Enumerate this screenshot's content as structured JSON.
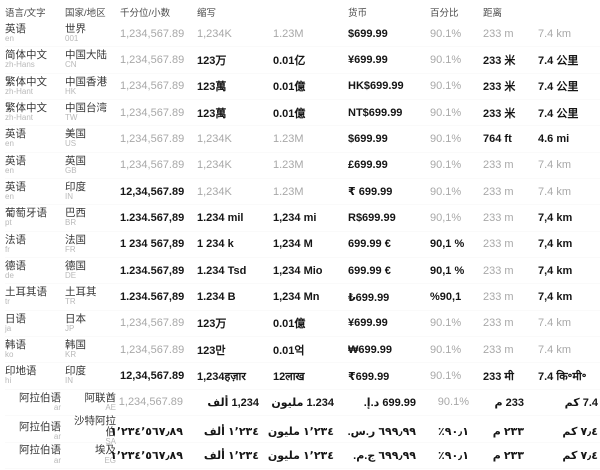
{
  "table": {
    "headers": {
      "language": "语言/文字",
      "country": "国家/地区",
      "decimal_format": "千分位/小数",
      "abbreviation": "缩写",
      "currency": "货币",
      "percentage": "百分比",
      "distance": "距离"
    },
    "rows": [
      {
        "language": "英语",
        "language_code": "en",
        "country": "世界",
        "country_code": "001",
        "rtl": false,
        "values": [
          {
            "text": "1,234,567.89",
            "emphasis": false
          },
          {
            "text": "1,234K",
            "emphasis": false
          },
          {
            "text": "1.23M",
            "emphasis": false
          },
          {
            "text": "$699.99",
            "emphasis": true
          },
          {
            "text": "90.1%",
            "emphasis": false
          },
          {
            "text": "233 m",
            "emphasis": false
          },
          {
            "text": "7.4 km",
            "emphasis": false
          }
        ]
      },
      {
        "language": "简体中文",
        "language_code": "zh-Hans",
        "country": "中国大陆",
        "country_code": "CN",
        "rtl": false,
        "values": [
          {
            "text": "1,234,567.89",
            "emphasis": false
          },
          {
            "text": "123万",
            "emphasis": true
          },
          {
            "text": "0.01亿",
            "emphasis": true
          },
          {
            "text": "¥699.99",
            "emphasis": true
          },
          {
            "text": "90.1%",
            "emphasis": false
          },
          {
            "text": "233 米",
            "emphasis": true
          },
          {
            "text": "7.4 公里",
            "emphasis": true
          }
        ]
      },
      {
        "language": "繁体中文",
        "language_code": "zh-Hant",
        "country": "中国香港",
        "country_code": "HK",
        "rtl": false,
        "values": [
          {
            "text": "1,234,567.89",
            "emphasis": false
          },
          {
            "text": "123萬",
            "emphasis": true
          },
          {
            "text": "0.01億",
            "emphasis": true
          },
          {
            "text": "HK$699.99",
            "emphasis": true
          },
          {
            "text": "90.1%",
            "emphasis": false
          },
          {
            "text": "233 米",
            "emphasis": true
          },
          {
            "text": "7.4 公里",
            "emphasis": true
          }
        ]
      },
      {
        "language": "繁体中文",
        "language_code": "zh-Hant",
        "country": "中国台湾",
        "country_code": "TW",
        "rtl": false,
        "values": [
          {
            "text": "1,234,567.89",
            "emphasis": false
          },
          {
            "text": "123萬",
            "emphasis": true
          },
          {
            "text": "0.01億",
            "emphasis": true
          },
          {
            "text": "NT$699.99",
            "emphasis": true
          },
          {
            "text": "90.1%",
            "emphasis": false
          },
          {
            "text": "233 米",
            "emphasis": true
          },
          {
            "text": "7.4 公里",
            "emphasis": true
          }
        ]
      },
      {
        "language": "英语",
        "language_code": "en",
        "country": "美国",
        "country_code": "US",
        "rtl": false,
        "values": [
          {
            "text": "1,234,567.89",
            "emphasis": false
          },
          {
            "text": "1,234K",
            "emphasis": false
          },
          {
            "text": "1.23M",
            "emphasis": false
          },
          {
            "text": "$699.99",
            "emphasis": true
          },
          {
            "text": "90.1%",
            "emphasis": false
          },
          {
            "text": "764 ft",
            "emphasis": true
          },
          {
            "text": "4.6 mi",
            "emphasis": true
          }
        ]
      },
      {
        "language": "英语",
        "language_code": "en",
        "country": "英国",
        "country_code": "GB",
        "rtl": false,
        "values": [
          {
            "text": "1,234,567.89",
            "emphasis": false
          },
          {
            "text": "1,234K",
            "emphasis": false
          },
          {
            "text": "1.23M",
            "emphasis": false
          },
          {
            "text": "£699.99",
            "emphasis": true
          },
          {
            "text": "90.1%",
            "emphasis": false
          },
          {
            "text": "233 m",
            "emphasis": false
          },
          {
            "text": "7.4 km",
            "emphasis": false
          }
        ]
      },
      {
        "language": "英语",
        "language_code": "en",
        "country": "印度",
        "country_code": "IN",
        "rtl": false,
        "values": [
          {
            "text": "12,34,567.89",
            "emphasis": true
          },
          {
            "text": "1,234K",
            "emphasis": false
          },
          {
            "text": "1.23M",
            "emphasis": false
          },
          {
            "text": "₹ 699.99",
            "emphasis": true
          },
          {
            "text": "90.1%",
            "emphasis": false
          },
          {
            "text": "233 m",
            "emphasis": false
          },
          {
            "text": "7.4 km",
            "emphasis": false
          }
        ]
      },
      {
        "language": "葡萄牙语",
        "language_code": "pt",
        "country": "巴西",
        "country_code": "BR",
        "rtl": false,
        "values": [
          {
            "text": "1.234.567,89",
            "emphasis": true
          },
          {
            "text": "1.234 mil",
            "emphasis": true
          },
          {
            "text": "1,234 mi",
            "emphasis": true
          },
          {
            "text": "R$699.99",
            "emphasis": true
          },
          {
            "text": "90,1%",
            "emphasis": false
          },
          {
            "text": "233 m",
            "emphasis": false
          },
          {
            "text": "7,4 km",
            "emphasis": true
          }
        ]
      },
      {
        "language": "法语",
        "language_code": "fr",
        "country": "法国",
        "country_code": "FR",
        "rtl": false,
        "values": [
          {
            "text": "1 234 567,89",
            "emphasis": true
          },
          {
            "text": "1 234 k",
            "emphasis": true
          },
          {
            "text": "1,234 M",
            "emphasis": true
          },
          {
            "text": "699.99 €",
            "emphasis": true
          },
          {
            "text": "90,1 %",
            "emphasis": true
          },
          {
            "text": "233 m",
            "emphasis": false
          },
          {
            "text": "7,4 km",
            "emphasis": true
          }
        ]
      },
      {
        "language": "德语",
        "language_code": "de",
        "country": "德国",
        "country_code": "DE",
        "rtl": false,
        "values": [
          {
            "text": "1.234.567,89",
            "emphasis": true
          },
          {
            "text": "1.234 Tsd",
            "emphasis": true
          },
          {
            "text": "1,234 Mio",
            "emphasis": true
          },
          {
            "text": "699.99 €",
            "emphasis": true
          },
          {
            "text": "90,1 %",
            "emphasis": true
          },
          {
            "text": "233 m",
            "emphasis": false
          },
          {
            "text": "7,4 km",
            "emphasis": true
          }
        ]
      },
      {
        "language": "土耳其语",
        "language_code": "tr",
        "country": "土耳其",
        "country_code": "TR",
        "rtl": false,
        "values": [
          {
            "text": "1.234.567,89",
            "emphasis": true
          },
          {
            "text": "1.234 B",
            "emphasis": true
          },
          {
            "text": "1,234 Mn",
            "emphasis": true
          },
          {
            "text": "₺699.99",
            "emphasis": true
          },
          {
            "text": "%90,1",
            "emphasis": true
          },
          {
            "text": "233 m",
            "emphasis": false
          },
          {
            "text": "7,4 km",
            "emphasis": true
          }
        ]
      },
      {
        "language": "日语",
        "language_code": "ja",
        "country": "日本",
        "country_code": "JP",
        "rtl": false,
        "values": [
          {
            "text": "1,234,567.89",
            "emphasis": false
          },
          {
            "text": "123万",
            "emphasis": true
          },
          {
            "text": "0.01億",
            "emphasis": true
          },
          {
            "text": "¥699.99",
            "emphasis": true
          },
          {
            "text": "90.1%",
            "emphasis": false
          },
          {
            "text": "233 m",
            "emphasis": false
          },
          {
            "text": "7.4 km",
            "emphasis": false
          }
        ]
      },
      {
        "language": "韩语",
        "language_code": "ko",
        "country": "韩国",
        "country_code": "KR",
        "rtl": false,
        "values": [
          {
            "text": "1,234,567.89",
            "emphasis": false
          },
          {
            "text": "123만",
            "emphasis": true
          },
          {
            "text": "0.01억",
            "emphasis": true
          },
          {
            "text": "₩699.99",
            "emphasis": true
          },
          {
            "text": "90.1%",
            "emphasis": false
          },
          {
            "text": "233 m",
            "emphasis": false
          },
          {
            "text": "7.4 km",
            "emphasis": false
          }
        ]
      },
      {
        "language": "印地语",
        "language_code": "hi",
        "country": "印度",
        "country_code": "IN",
        "rtl": false,
        "values": [
          {
            "text": "12,34,567.89",
            "emphasis": true
          },
          {
            "text": "1,234हज़ार",
            "emphasis": true
          },
          {
            "text": "12लाख",
            "emphasis": true
          },
          {
            "text": "₹699.99",
            "emphasis": true
          },
          {
            "text": "90.1%",
            "emphasis": false
          },
          {
            "text": "233 मी",
            "emphasis": true
          },
          {
            "text": "7.4 कि॰मी॰",
            "emphasis": true
          }
        ]
      },
      {
        "language": "阿拉伯语",
        "language_code": "ar",
        "country": "阿联酋",
        "country_code": "AE",
        "rtl": true,
        "values": [
          {
            "text": "1,234,567.89",
            "emphasis": false
          },
          {
            "text": "1,234 ألف",
            "emphasis": true
          },
          {
            "text": "1.234 مليون",
            "emphasis": true
          },
          {
            "text": "699.99 د.إ.",
            "emphasis": true
          },
          {
            "text": "90.1%",
            "emphasis": false
          },
          {
            "text": "233 م",
            "emphasis": true
          },
          {
            "text": "7.4 كم",
            "emphasis": true
          }
        ]
      },
      {
        "language": "阿拉伯语",
        "language_code": "ar",
        "country": "沙特阿拉伯",
        "country_code": "SA",
        "rtl": true,
        "values": [
          {
            "text": "١٬٢٣٤٬٥٦٧٫٨٩",
            "emphasis": true
          },
          {
            "text": "١٬٢٣٤ ألف",
            "emphasis": true
          },
          {
            "text": "١٬٢٣٤ مليون",
            "emphasis": true
          },
          {
            "text": "٦٩٩٫٩٩ ر.س.",
            "emphasis": true
          },
          {
            "text": "٩٠٫١٪",
            "emphasis": true
          },
          {
            "text": "٢٣٣ م",
            "emphasis": true
          },
          {
            "text": "٧٫٤ كم",
            "emphasis": true
          }
        ]
      },
      {
        "language": "阿拉伯语",
        "language_code": "ar",
        "country": "埃及",
        "country_code": "EG",
        "rtl": true,
        "values": [
          {
            "text": "١٬٢٣٤٬٥٦٧٫٨٩",
            "emphasis": true
          },
          {
            "text": "١٬٢٣٤ ألف",
            "emphasis": true
          },
          {
            "text": "١٬٢٣٤ مليون",
            "emphasis": true
          },
          {
            "text": "٦٩٩٫٩٩ ج.م.",
            "emphasis": true
          },
          {
            "text": "٩٠٫١٪",
            "emphasis": true
          },
          {
            "text": "٢٣٣ م",
            "emphasis": true
          },
          {
            "text": "٧٫٤ كم",
            "emphasis": true
          }
        ]
      }
    ]
  }
}
